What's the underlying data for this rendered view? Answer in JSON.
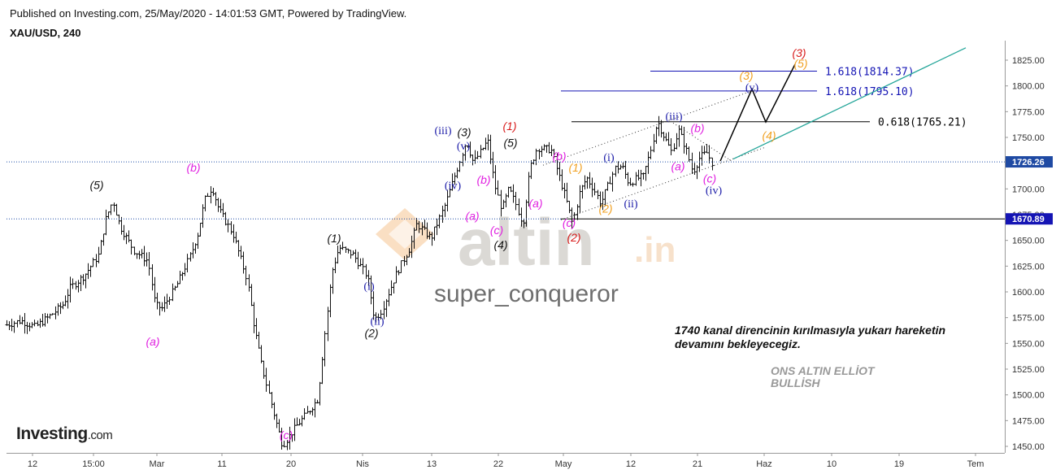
{
  "header": {
    "published": "Published on Investing.com, 25/May/2020 - 14:01:53 GMT, Powered by TradingView.",
    "symbol": "XAU/USD, 240"
  },
  "watermark": {
    "brand": "altin",
    "domain": ".in",
    "author": "super_conqueror"
  },
  "logo": {
    "brand": "Investing",
    "suffix": ".com"
  },
  "comment": {
    "line1": "1740 kanal direncinin kırılmasıyla yukarı hareketin",
    "line2": "devamını bekleyecegiz."
  },
  "tag": {
    "line1": "ONS ALTIN ELLİOT",
    "line2": "BULLİSH"
  },
  "colors": {
    "black": "#111111",
    "magenta": "#e020e0",
    "red": "#d81b1b",
    "blue": "#1a1aa8",
    "orange": "#f0a020",
    "channel": "#26a69a",
    "hline": "#000000",
    "blueline": "#1414b4"
  },
  "chart_data": {
    "type": "candlestick",
    "x_ticks": [
      "12",
      "15:00",
      "Mar",
      "11",
      "20",
      "Nis",
      "13",
      "22",
      "May",
      "12",
      "21",
      "Haz",
      "10",
      "19",
      "Tem"
    ],
    "y_ticks": [
      "1825.00",
      "1800.00",
      "1775.00",
      "1750.00",
      "1725.00",
      "1700.00",
      "1675.00",
      "1650.00",
      "1625.00",
      "1600.00",
      "1575.00",
      "1550.00",
      "1525.00",
      "1500.00",
      "1475.00",
      "1450.00"
    ],
    "ylim": [
      1445,
      1838
    ],
    "current_price": {
      "label": "1726.26",
      "value": 1726.26
    },
    "support_price": {
      "label": "1670.89",
      "value": 1670.89
    },
    "price_path": [
      [
        0,
        1568
      ],
      [
        2,
        1572
      ],
      [
        4,
        1566
      ],
      [
        6,
        1576
      ],
      [
        8,
        1588
      ],
      [
        9,
        1604
      ],
      [
        11,
        1616
      ],
      [
        13,
        1636
      ],
      [
        14,
        1670
      ],
      [
        15,
        1689
      ],
      [
        16,
        1664
      ],
      [
        18,
        1640
      ],
      [
        20,
        1630
      ],
      [
        21,
        1587
      ],
      [
        22,
        1584
      ],
      [
        24,
        1606
      ],
      [
        26,
        1636
      ],
      [
        27,
        1656
      ],
      [
        28,
        1689
      ],
      [
        29,
        1702
      ],
      [
        30,
        1680
      ],
      [
        32,
        1656
      ],
      [
        34,
        1612
      ],
      [
        35,
        1566
      ],
      [
        36,
        1530
      ],
      [
        38,
        1476
      ],
      [
        39,
        1451
      ],
      [
        41,
        1470
      ],
      [
        42,
        1478
      ],
      [
        44,
        1496
      ],
      [
        45,
        1560
      ],
      [
        46,
        1620
      ],
      [
        47,
        1643
      ],
      [
        49,
        1636
      ],
      [
        51,
        1615
      ],
      [
        52,
        1573
      ],
      [
        53,
        1582
      ],
      [
        55,
        1616
      ],
      [
        57,
        1643
      ],
      [
        58,
        1666
      ],
      [
        60,
        1652
      ],
      [
        62,
        1685
      ],
      [
        63,
        1705
      ],
      [
        65,
        1747
      ],
      [
        66,
        1725
      ],
      [
        68,
        1747
      ],
      [
        69,
        1704
      ],
      [
        70,
        1680
      ],
      [
        71,
        1700
      ],
      [
        72,
        1685
      ],
      [
        73,
        1666
      ],
      [
        74,
        1720
      ],
      [
        75,
        1740
      ],
      [
        77,
        1738
      ],
      [
        78,
        1714
      ],
      [
        79,
        1692
      ],
      [
        80,
        1666
      ],
      [
        81,
        1696
      ],
      [
        82,
        1711
      ],
      [
        83,
        1700
      ],
      [
        84,
        1686
      ],
      [
        86,
        1720
      ],
      [
        87,
        1722
      ],
      [
        88,
        1705
      ],
      [
        89,
        1710
      ],
      [
        90,
        1712
      ],
      [
        91,
        1736
      ],
      [
        92,
        1766
      ],
      [
        93,
        1750
      ],
      [
        94,
        1736
      ],
      [
        95,
        1757
      ],
      [
        96,
        1740
      ],
      [
        97,
        1716
      ],
      [
        98,
        1731
      ],
      [
        99,
        1735
      ],
      [
        100,
        1722
      ]
    ],
    "levels": [
      {
        "label": "0.618(1765.21)",
        "value": 1765.21,
        "color": "#000000"
      },
      {
        "label": "1.618(1795.10)",
        "value": 1795.1,
        "color": "#1414b4"
      },
      {
        "label": "1.618(1814.37)",
        "value": 1814.37,
        "color": "#1414b4"
      }
    ],
    "annotations": [
      {
        "text": "(5)",
        "color": "#111111",
        "italic": true,
        "x": 119,
        "y": 1700
      },
      {
        "text": "(b)",
        "color": "#e020e0",
        "italic": true,
        "x": 238,
        "y": 1717
      },
      {
        "text": "(a)",
        "color": "#e020e0",
        "italic": true,
        "x": 188,
        "y": 1548
      },
      {
        "text": "(1)",
        "color": "#111111",
        "italic": true,
        "x": 411,
        "y": 1648
      },
      {
        "text": "(i)",
        "color": "#1a1aa8",
        "italic": false,
        "x": 454,
        "y": 1602
      },
      {
        "text": "(ii)",
        "color": "#1a1aa8",
        "italic": false,
        "x": 464,
        "y": 1568
      },
      {
        "text": "(2)",
        "color": "#111111",
        "italic": true,
        "x": 457,
        "y": 1556
      },
      {
        "text": "(c)",
        "color": "#e020e0",
        "italic": true,
        "x": 352,
        "y": 1457
      },
      {
        "text": "(iii)",
        "color": "#1a1aa8",
        "italic": false,
        "x": 545,
        "y": 1753
      },
      {
        "text": "(3)",
        "color": "#111111",
        "italic": true,
        "x": 571,
        "y": 1751
      },
      {
        "text": "(v)",
        "color": "#1a1aa8",
        "italic": false,
        "x": 570,
        "y": 1738
      },
      {
        "text": "(iv)",
        "color": "#1a1aa8",
        "italic": false,
        "x": 557,
        "y": 1700
      },
      {
        "text": "(1)",
        "color": "#d81b1b",
        "italic": true,
        "x": 627,
        "y": 1757
      },
      {
        "text": "(5)",
        "color": "#111111",
        "italic": true,
        "x": 628,
        "y": 1741
      },
      {
        "text": "(b)",
        "color": "#e020e0",
        "italic": true,
        "x": 595,
        "y": 1705
      },
      {
        "text": "(a)",
        "color": "#e020e0",
        "italic": true,
        "x": 581,
        "y": 1670
      },
      {
        "text": "(c)",
        "color": "#e020e0",
        "italic": true,
        "x": 611,
        "y": 1656
      },
      {
        "text": "(4)",
        "color": "#111111",
        "italic": true,
        "x": 616,
        "y": 1642
      },
      {
        "text": "(a)",
        "color": "#e020e0",
        "italic": true,
        "x": 659,
        "y": 1682
      },
      {
        "text": "(b)",
        "color": "#e020e0",
        "italic": true,
        "x": 688,
        "y": 1728
      },
      {
        "text": "(c)",
        "color": "#e020e0",
        "italic": true,
        "x": 700,
        "y": 1663
      },
      {
        "text": "(2)",
        "color": "#d81b1b",
        "italic": true,
        "x": 706,
        "y": 1649
      },
      {
        "text": "(1)",
        "color": "#f0a020",
        "italic": true,
        "x": 708,
        "y": 1717
      },
      {
        "text": "(2)",
        "color": "#f0a020",
        "italic": true,
        "x": 745,
        "y": 1677
      },
      {
        "text": "(i)",
        "color": "#1a1aa8",
        "italic": false,
        "x": 749,
        "y": 1727
      },
      {
        "text": "(ii)",
        "color": "#1a1aa8",
        "italic": false,
        "x": 776,
        "y": 1682
      },
      {
        "text": "(iii)",
        "color": "#1a1aa8",
        "italic": false,
        "x": 829,
        "y": 1767
      },
      {
        "text": "(b)",
        "color": "#e020e0",
        "italic": true,
        "x": 858,
        "y": 1755
      },
      {
        "text": "(a)",
        "color": "#e020e0",
        "italic": true,
        "x": 834,
        "y": 1718
      },
      {
        "text": "(c)",
        "color": "#e020e0",
        "italic": true,
        "x": 873,
        "y": 1706
      },
      {
        "text": "(iv)",
        "color": "#1a1aa8",
        "italic": false,
        "x": 878,
        "y": 1695
      },
      {
        "text": "(3)",
        "color": "#f0a020",
        "italic": true,
        "x": 918,
        "y": 1806
      },
      {
        "text": "(v)",
        "color": "#1a1aa8",
        "italic": false,
        "x": 925,
        "y": 1795
      },
      {
        "text": "(4)",
        "color": "#f0a020",
        "italic": true,
        "x": 946,
        "y": 1748
      },
      {
        "text": "(3)",
        "color": "#d81b1b",
        "italic": true,
        "x": 983,
        "y": 1828
      },
      {
        "text": "(5)",
        "color": "#f0a020",
        "italic": true,
        "x": 985,
        "y": 1818
      }
    ],
    "projection": [
      [
        886,
        1727
      ],
      [
        925,
        1797
      ],
      [
        942,
        1765
      ],
      [
        978,
        1821
      ]
    ],
    "channel_upper": [
      [
        668,
        1723
      ],
      [
        935,
        1798
      ]
    ],
    "channel_lower": [
      [
        690,
        1670
      ],
      [
        940,
        1740
      ]
    ],
    "wedge_upper": [
      [
        828,
        1764
      ],
      [
        900,
        1727
      ]
    ],
    "green_line": [
      [
        902,
        1729
      ],
      [
        1188,
        1837
      ]
    ],
    "grid": false
  }
}
